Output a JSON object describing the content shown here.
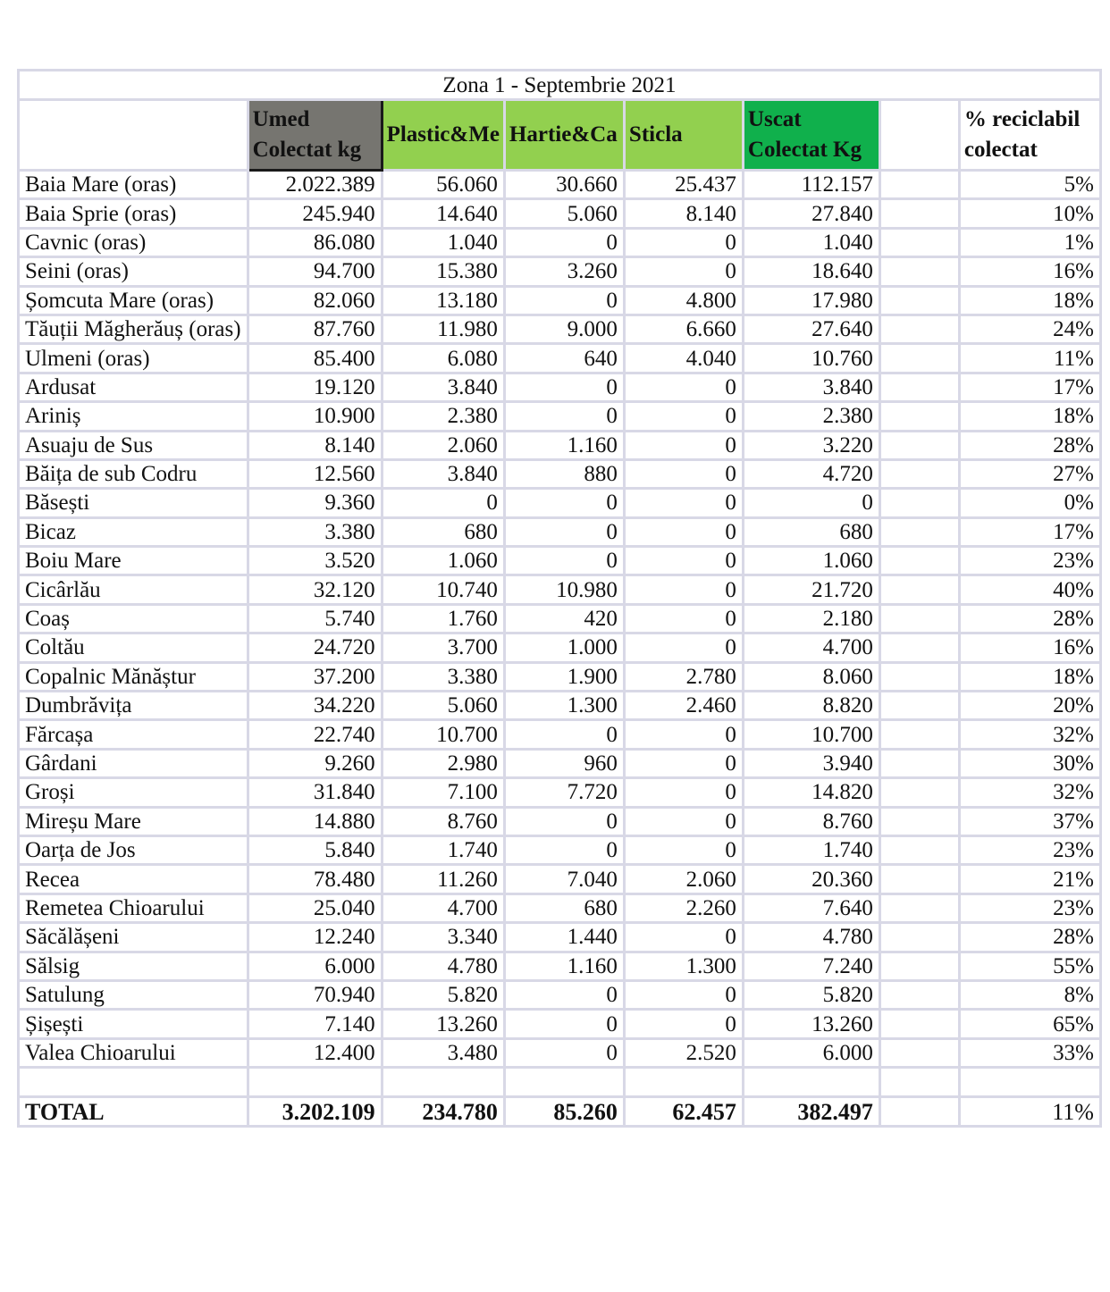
{
  "title": "Zona 1 - Septembrie 2021",
  "headers": {
    "umed": [
      "Umed",
      "Colectat kg"
    ],
    "plastic": "Plastic&Me",
    "hartie": "Hartie&Ca",
    "sticla": "Sticla",
    "uscat": [
      "Uscat",
      "Colectat Kg"
    ],
    "procent": [
      "% reciclabil",
      "colectat"
    ]
  },
  "colors": {
    "umed": "#767570",
    "recycle": "#92d04f",
    "uscat": "#10b04c"
  },
  "rows": [
    [
      "Baia Mare (oras)",
      "2.022.389",
      "56.060",
      "30.660",
      "25.437",
      "112.157",
      "5%"
    ],
    [
      "Baia Sprie  (oras)",
      "245.940",
      "14.640",
      "5.060",
      "8.140",
      "27.840",
      "10%"
    ],
    [
      "Cavnic  (oras)",
      "86.080",
      "1.040",
      "0",
      "0",
      "1.040",
      "1%"
    ],
    [
      "Seini  (oras)",
      "94.700",
      "15.380",
      "3.260",
      "0",
      "18.640",
      "16%"
    ],
    [
      "Șomcuta Mare  (oras)",
      "82.060",
      "13.180",
      "0",
      "4.800",
      "17.980",
      "18%"
    ],
    [
      "Tăuții  Măgherăuș  (oras)",
      "87.760",
      "11.980",
      "9.000",
      "6.660",
      "27.640",
      "24%"
    ],
    [
      "Ulmeni  (oras)",
      "85.400",
      "6.080",
      "640",
      "4.040",
      "10.760",
      "11%"
    ],
    [
      "Ardusat",
      "19.120",
      "3.840",
      "0",
      "0",
      "3.840",
      "17%"
    ],
    [
      "Ariniș",
      "10.900",
      "2.380",
      "0",
      "0",
      "2.380",
      "18%"
    ],
    [
      "Asuaju de Sus",
      "8.140",
      "2.060",
      "1.160",
      "0",
      "3.220",
      "28%"
    ],
    [
      "Băița de sub Codru",
      "12.560",
      "3.840",
      "880",
      "0",
      "4.720",
      "27%"
    ],
    [
      "Băsești",
      "9.360",
      "0",
      "0",
      "0",
      "0",
      "0%"
    ],
    [
      "Bicaz",
      "3.380",
      "680",
      "0",
      "0",
      "680",
      "17%"
    ],
    [
      "Boiu Mare",
      "3.520",
      "1.060",
      "0",
      "0",
      "1.060",
      "23%"
    ],
    [
      "Cicârlău",
      "32.120",
      "10.740",
      "10.980",
      "0",
      "21.720",
      "40%"
    ],
    [
      "Coaș",
      "5.740",
      "1.760",
      "420",
      "0",
      "2.180",
      "28%"
    ],
    [
      "Coltău",
      "24.720",
      "3.700",
      "1.000",
      "0",
      "4.700",
      "16%"
    ],
    [
      "Copalnic Mănăștur",
      "37.200",
      "3.380",
      "1.900",
      "2.780",
      "8.060",
      "18%"
    ],
    [
      "Dumbrăvița",
      "34.220",
      "5.060",
      "1.300",
      "2.460",
      "8.820",
      "20%"
    ],
    [
      "Fărcașa",
      "22.740",
      "10.700",
      "0",
      "0",
      "10.700",
      "32%"
    ],
    [
      "Gârdani",
      "9.260",
      "2.980",
      "960",
      "0",
      "3.940",
      "30%"
    ],
    [
      "Groși",
      "31.840",
      "7.100",
      "7.720",
      "0",
      "14.820",
      "32%"
    ],
    [
      "Mireșu Mare",
      "14.880",
      "8.760",
      "0",
      "0",
      "8.760",
      "37%"
    ],
    [
      "Oarța de Jos",
      "5.840",
      "1.740",
      "0",
      "0",
      "1.740",
      "23%"
    ],
    [
      "Recea",
      "78.480",
      "11.260",
      "7.040",
      "2.060",
      "20.360",
      "21%"
    ],
    [
      "Remetea Chioarului",
      "25.040",
      "4.700",
      "680",
      "2.260",
      "7.640",
      "23%"
    ],
    [
      "Săcălășeni",
      "12.240",
      "3.340",
      "1.440",
      "0",
      "4.780",
      "28%"
    ],
    [
      "Sălsig",
      "6.000",
      "4.780",
      "1.160",
      "1.300",
      "7.240",
      "55%"
    ],
    [
      "Satulung",
      "70.940",
      "5.820",
      "0",
      "0",
      "5.820",
      "8%"
    ],
    [
      "Șișești",
      "7.140",
      "13.260",
      "0",
      "0",
      "13.260",
      "65%"
    ],
    [
      "Valea Chioarului",
      "12.400",
      "3.480",
      "0",
      "2.520",
      "6.000",
      "33%"
    ]
  ],
  "total": [
    "TOTAL",
    "3.202.109",
    "234.780",
    "85.260",
    "62.457",
    "382.497",
    "11%"
  ]
}
